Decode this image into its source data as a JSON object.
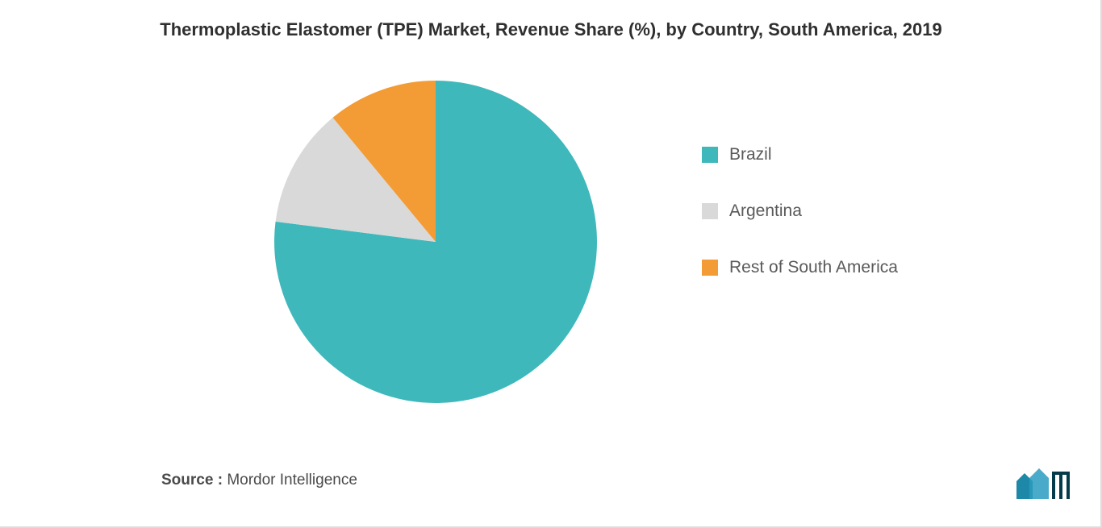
{
  "title": "Thermoplastic Elastomer (TPE) Market, Revenue Share (%), by Country, South America, 2019",
  "chart": {
    "type": "pie",
    "background_color": "#ffffff",
    "title_fontsize": 22,
    "title_color": "#2f2f2f",
    "slices": [
      {
        "label": "Brazil",
        "value": 77,
        "color": "#3fb8bb"
      },
      {
        "label": "Argentina",
        "value": 12,
        "color": "#d9d9d9"
      },
      {
        "label": "Rest of South America",
        "value": 11,
        "color": "#f39c35"
      }
    ],
    "start_angle_deg": -90,
    "radius": 200,
    "legend": {
      "position": "right",
      "fontsize": 21,
      "text_color": "#5a5a5a",
      "swatch_size": 20,
      "gap": 46
    }
  },
  "source": {
    "label": "Source :",
    "value": "Mordor Intelligence",
    "fontsize": 19,
    "color": "#4a4a4a"
  },
  "logo": {
    "bar_color": "#1e88a8",
    "accent_color": "#2a9bbf"
  }
}
